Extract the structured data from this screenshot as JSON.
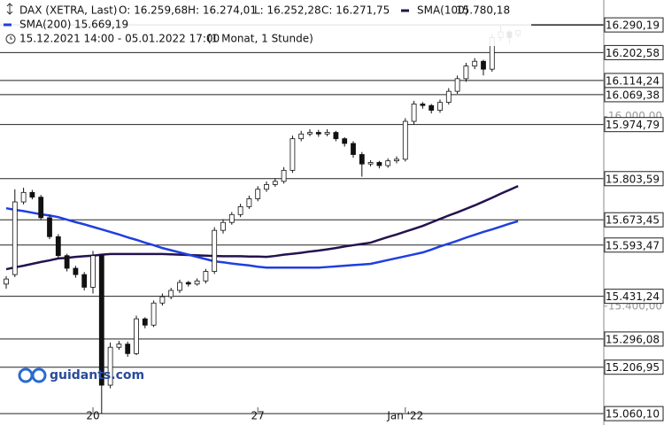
{
  "header": {
    "instrument": "DAX (XETRA, Last)",
    "open": "O: 16.259,68",
    "high": "H: 16.274,01",
    "low": "L: 16.252,28",
    "close": "C: 16.271,75",
    "range": "15.12.2021 14:00 - 05.01.2022 17:00",
    "period": "(1 Monat, 1 Stunde)"
  },
  "watermark": "guidants.com",
  "chart_data": {
    "type": "candlestick",
    "categories": [
      null,
      null,
      null,
      null,
      null,
      null,
      null,
      null,
      null,
      null,
      "20",
      null,
      null,
      null,
      null,
      null,
      null,
      null,
      null,
      null,
      null,
      null,
      null,
      null,
      null,
      null,
      null,
      null,
      null,
      "27",
      null,
      null,
      null,
      null,
      null,
      null,
      null,
      null,
      null,
      null,
      null,
      null,
      null,
      null,
      null,
      null,
      "Jan '22",
      null,
      null,
      null,
      null,
      null,
      null,
      null,
      null,
      null,
      null,
      null,
      null,
      null
    ],
    "open": [
      15470,
      15500,
      15730,
      15760,
      15745,
      15680,
      15620,
      15560,
      15520,
      15500,
      15460,
      15560,
      15150,
      15270,
      15280,
      15250,
      15360,
      15340,
      15410,
      15430,
      15450,
      15475,
      15470,
      15480,
      15510,
      15640,
      15665,
      15690,
      15715,
      15740,
      15770,
      15785,
      15795,
      15830,
      15930,
      15945,
      15950,
      15945,
      15950,
      15930,
      15915,
      15880,
      15850,
      15855,
      15845,
      15860,
      15865,
      15985,
      16040,
      16035,
      16020,
      16045,
      16080,
      16120,
      16160,
      16175,
      16150,
      16250,
      16268,
      16259.68
    ],
    "high": [
      15495,
      15770,
      15775,
      15768,
      15752,
      15690,
      15628,
      15566,
      15528,
      15508,
      15575,
      15565,
      15285,
      15290,
      15288,
      15370,
      15365,
      15418,
      15440,
      15458,
      15484,
      15480,
      15488,
      15518,
      15650,
      15675,
      15698,
      15724,
      15750,
      15780,
      15795,
      15805,
      15840,
      15940,
      15955,
      15960,
      15958,
      15960,
      15955,
      15935,
      15922,
      15888,
      15862,
      15860,
      15868,
      15874,
      15995,
      16050,
      16046,
      16040,
      16054,
      16090,
      16130,
      16170,
      16185,
      16180,
      16262,
      16290,
      16275,
      16274.01
    ],
    "low": [
      15455,
      15492,
      15722,
      15738,
      15672,
      15612,
      15550,
      15510,
      15490,
      15450,
      15440,
      15060,
      15140,
      15262,
      15240,
      15245,
      15330,
      15334,
      15402,
      15422,
      15442,
      15462,
      15465,
      15472,
      15502,
      15630,
      15658,
      15682,
      15708,
      15732,
      15762,
      15778,
      15788,
      15822,
      15922,
      15938,
      15936,
      15938,
      15922,
      15905,
      15870,
      15810,
      15842,
      15836,
      15838,
      15852,
      15858,
      15975,
      16025,
      16010,
      16012,
      16038,
      16072,
      16110,
      16150,
      16130,
      16142,
      16240,
      16232,
      16252.28
    ],
    "close": [
      15486,
      15730,
      15760,
      15745,
      15680,
      15620,
      15560,
      15520,
      15500,
      15460,
      15560,
      15150,
      15270,
      15280,
      15250,
      15360,
      15340,
      15410,
      15430,
      15450,
      15475,
      15470,
      15480,
      15510,
      15640,
      15665,
      15690,
      15715,
      15740,
      15770,
      15785,
      15795,
      15830,
      15930,
      15945,
      15950,
      15945,
      15950,
      15930,
      15915,
      15880,
      15850,
      15855,
      15845,
      15860,
      15865,
      15985,
      16040,
      16035,
      16020,
      16045,
      16080,
      16120,
      16160,
      16175,
      16150,
      16250,
      16268,
      16250,
      16271.75
    ],
    "up_color": "#ffffff",
    "down_color": "#111111",
    "series": [
      {
        "name": "SMA(100)",
        "color": "#24124f",
        "value_label": "15.780,18",
        "values": [
          15517,
          15523,
          15528,
          15534,
          15540,
          15545,
          15551,
          15553,
          15556,
          15558,
          15560,
          15563,
          15565,
          15565,
          15565,
          15565,
          15565,
          15565,
          15565,
          15564,
          15563,
          15562,
          15561,
          15560,
          15559,
          15558,
          15558,
          15558,
          15557,
          15557,
          15556,
          15559,
          15563,
          15566,
          15569,
          15573,
          15576,
          15580,
          15584,
          15589,
          15593,
          15597,
          15601,
          15610,
          15619,
          15627,
          15636,
          15645,
          15654,
          15665,
          15676,
          15687,
          15697,
          15708,
          15719,
          15731,
          15743,
          15756,
          15768,
          15780.18
        ]
      },
      {
        "name": "SMA(200)",
        "color": "#1f3fe0",
        "value_label": "15.669,19",
        "values": [
          15710,
          15705,
          15701,
          15696,
          15691,
          15687,
          15682,
          15674,
          15666,
          15659,
          15651,
          15643,
          15635,
          15627,
          15618,
          15610,
          15601,
          15593,
          15584,
          15577,
          15570,
          15563,
          15556,
          15549,
          15542,
          15539,
          15535,
          15532,
          15529,
          15525,
          15522,
          15522,
          15522,
          15522,
          15522,
          15522,
          15522,
          15524,
          15526,
          15528,
          15530,
          15532,
          15534,
          15540,
          15546,
          15552,
          15558,
          15564,
          15570,
          15579,
          15589,
          15598,
          15607,
          15617,
          15626,
          15635,
          15643,
          15652,
          15661,
          15669.19
        ]
      }
    ],
    "levels": [
      {
        "value": 16290.19,
        "label": "16.290,19"
      },
      {
        "value": 16202.58,
        "label": "16.202,58"
      },
      {
        "value": 16114.24,
        "label": "16.114,24"
      },
      {
        "value": 16069.38,
        "label": "16.069,38"
      },
      {
        "value": 15974.79,
        "label": "15.974,79"
      },
      {
        "value": 15803.59,
        "label": "15.803,59"
      },
      {
        "value": 15673.45,
        "label": "15.673,45"
      },
      {
        "value": 15593.47,
        "label": "15.593,47"
      },
      {
        "value": 15431.24,
        "label": "15.431,24"
      },
      {
        "value": 15296.08,
        "label": "15.296,08"
      },
      {
        "value": 15206.95,
        "label": "15.206,95"
      },
      {
        "value": 15060.1,
        "label": "15.060,10"
      }
    ],
    "ylim": [
      15024,
      16369
    ],
    "yticks": [
      {
        "value": 16000,
        "label": "16.000,00"
      },
      {
        "value": 15400,
        "label": "15.400,00"
      }
    ]
  }
}
